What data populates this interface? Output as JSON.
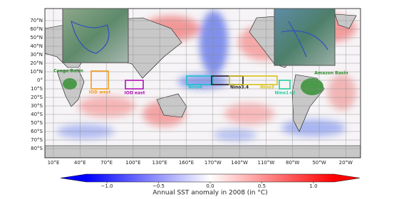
{
  "map": {
    "lat_labels": [
      "70°N",
      "60°N",
      "50°N",
      "40°N",
      "30°N",
      "20°N",
      "10°N",
      "0°",
      "10°S",
      "20°S",
      "30°S",
      "40°S",
      "50°S",
      "60°S",
      "70°S",
      "80°S"
    ],
    "lon_labels": [
      "10°E",
      "40°E",
      "70°E",
      "100°E",
      "130°E",
      "160°E",
      "170°W",
      "140°W",
      "110°W",
      "80°W",
      "50°W",
      "20°W"
    ],
    "regions": [
      {
        "label": "Congo Basin",
        "color": "#2e8b2e"
      },
      {
        "label": "IOD west",
        "color": "#f59a1b"
      },
      {
        "label": "IOD east",
        "color": "#b012b8"
      },
      {
        "label": "Nino4",
        "color": "#17c3c8"
      },
      {
        "label": "Nino3.4",
        "color": "#222222"
      },
      {
        "label": "Nino3",
        "color": "#d8c21a"
      },
      {
        "label": "Nino1+2",
        "color": "#1ed19a"
      },
      {
        "label": "Amazon Basin",
        "color": "#2e8b2e"
      }
    ],
    "colorbar": {
      "label": "Annual SST anomaly in 2008 (in °C)",
      "lim": [
        -1.2,
        1.2
      ],
      "ticks": [
        {
          "value": -1,
          "label": "−1.0"
        },
        {
          "value": -0.5,
          "label": "−0.5"
        },
        {
          "value": 0,
          "label": "0.0"
        },
        0.5,
        {
          "value": 1,
          "label": "1.0"
        }
      ]
    }
  }
}
